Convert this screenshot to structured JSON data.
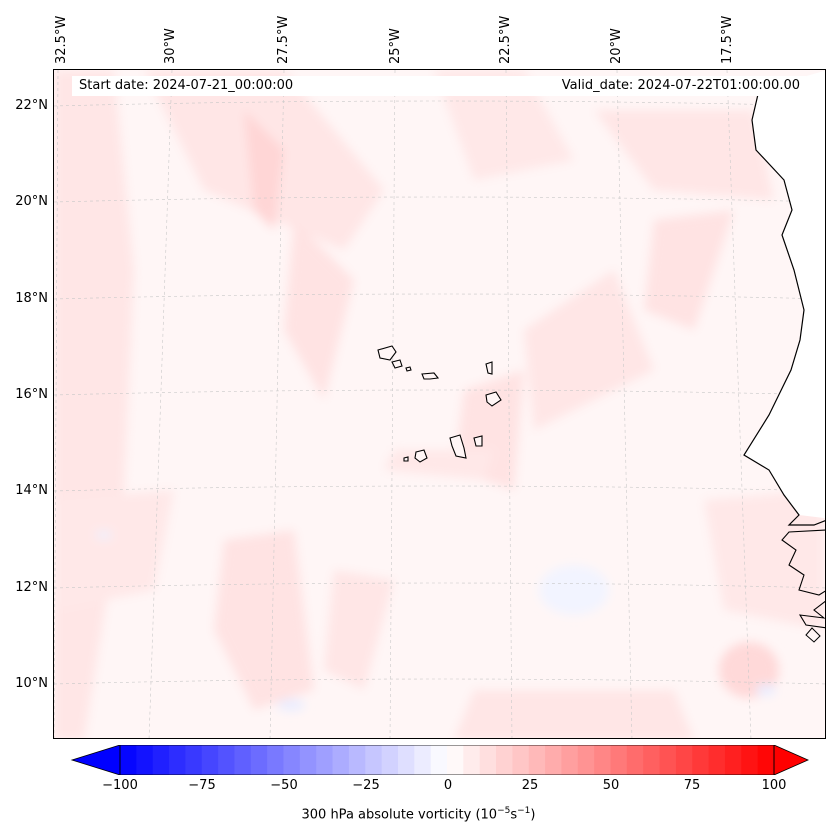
{
  "header": {
    "start_date_text": "Start date: 2024-07-21_00:00:00",
    "valid_date_text": "Valid_date: 2024-07-22T01:00:00.00"
  },
  "longitude_labels": [
    "32.5°W",
    "30°W",
    "27.5°W",
    "25°W",
    "22.5°W",
    "20°W",
    "17.5°W"
  ],
  "latitude_labels": [
    "22°N",
    "20°N",
    "18°N",
    "16°N",
    "14°N",
    "12°N",
    "10°N"
  ],
  "colorbar": {
    "label_prefix": "300 hPa absolute vorticity (10",
    "label_exp1": "−5",
    "label_mid": "s",
    "label_exp2": "−1",
    "label_suffix": ")",
    "ticks": [
      "−100",
      "−75",
      "−50",
      "−25",
      "0",
      "25",
      "50",
      "75",
      "100"
    ],
    "min": -100,
    "max": 100,
    "neg_color": "#0000ff",
    "pos_color": "#ff0000"
  },
  "colors": {
    "ocean_background": "#fff6f6",
    "coastline": "#000000",
    "gridline": "#c8c8c8"
  }
}
